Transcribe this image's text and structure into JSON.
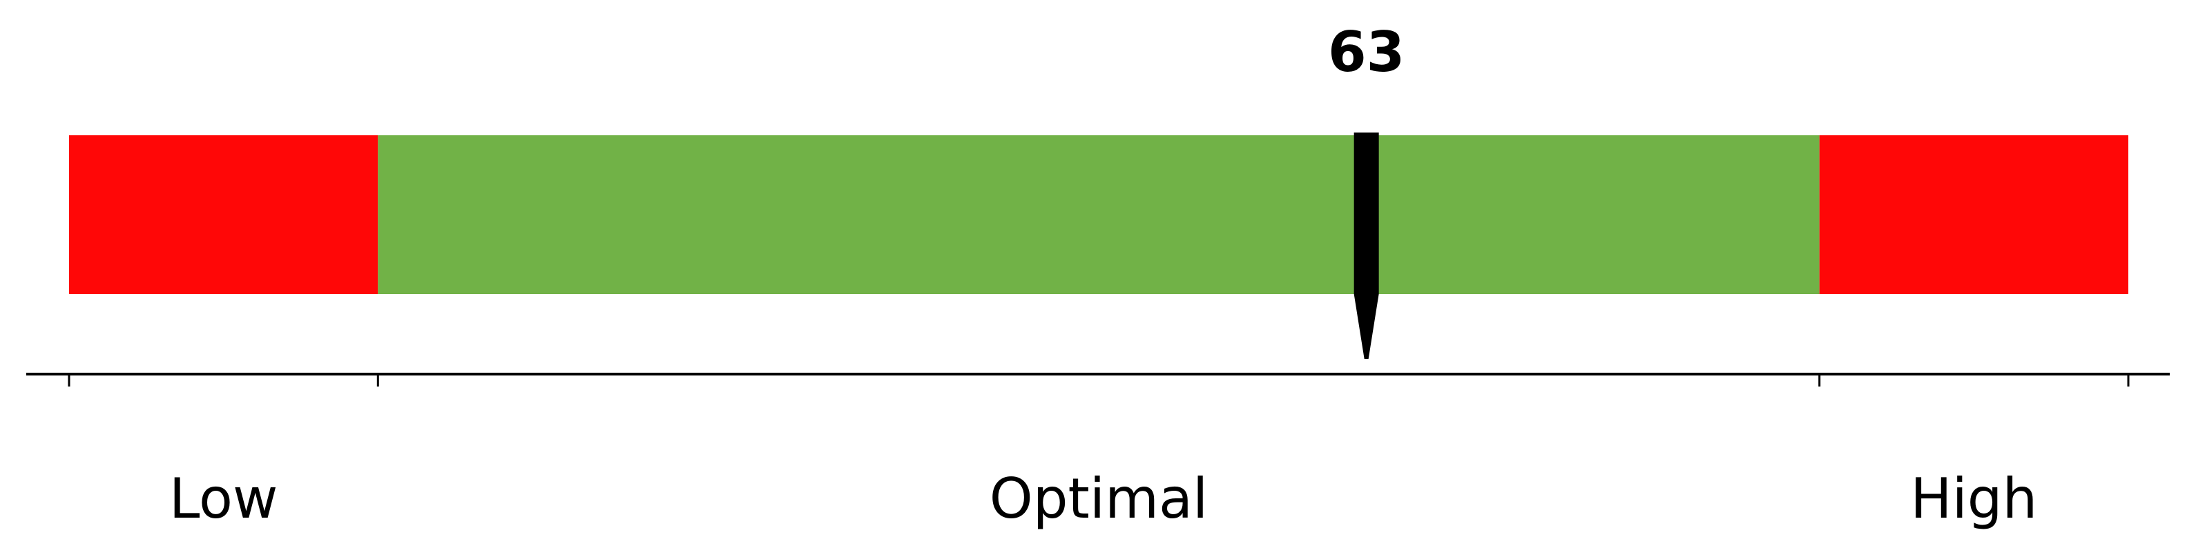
{
  "chart_data": {
    "type": "bar",
    "value": 63,
    "value_label": "63",
    "range": [
      0,
      100
    ],
    "segments": [
      {
        "label": "Low",
        "from": 0,
        "to": 15,
        "color": "#ff0707"
      },
      {
        "label": "Optimal",
        "from": 15,
        "to": 85,
        "color": "#71b247"
      },
      {
        "label": "High",
        "from": 85,
        "to": 100,
        "color": "#ff0707"
      }
    ],
    "ticks": [
      0,
      15,
      85,
      100
    ],
    "pointer_color": "#000000",
    "grid": false
  }
}
